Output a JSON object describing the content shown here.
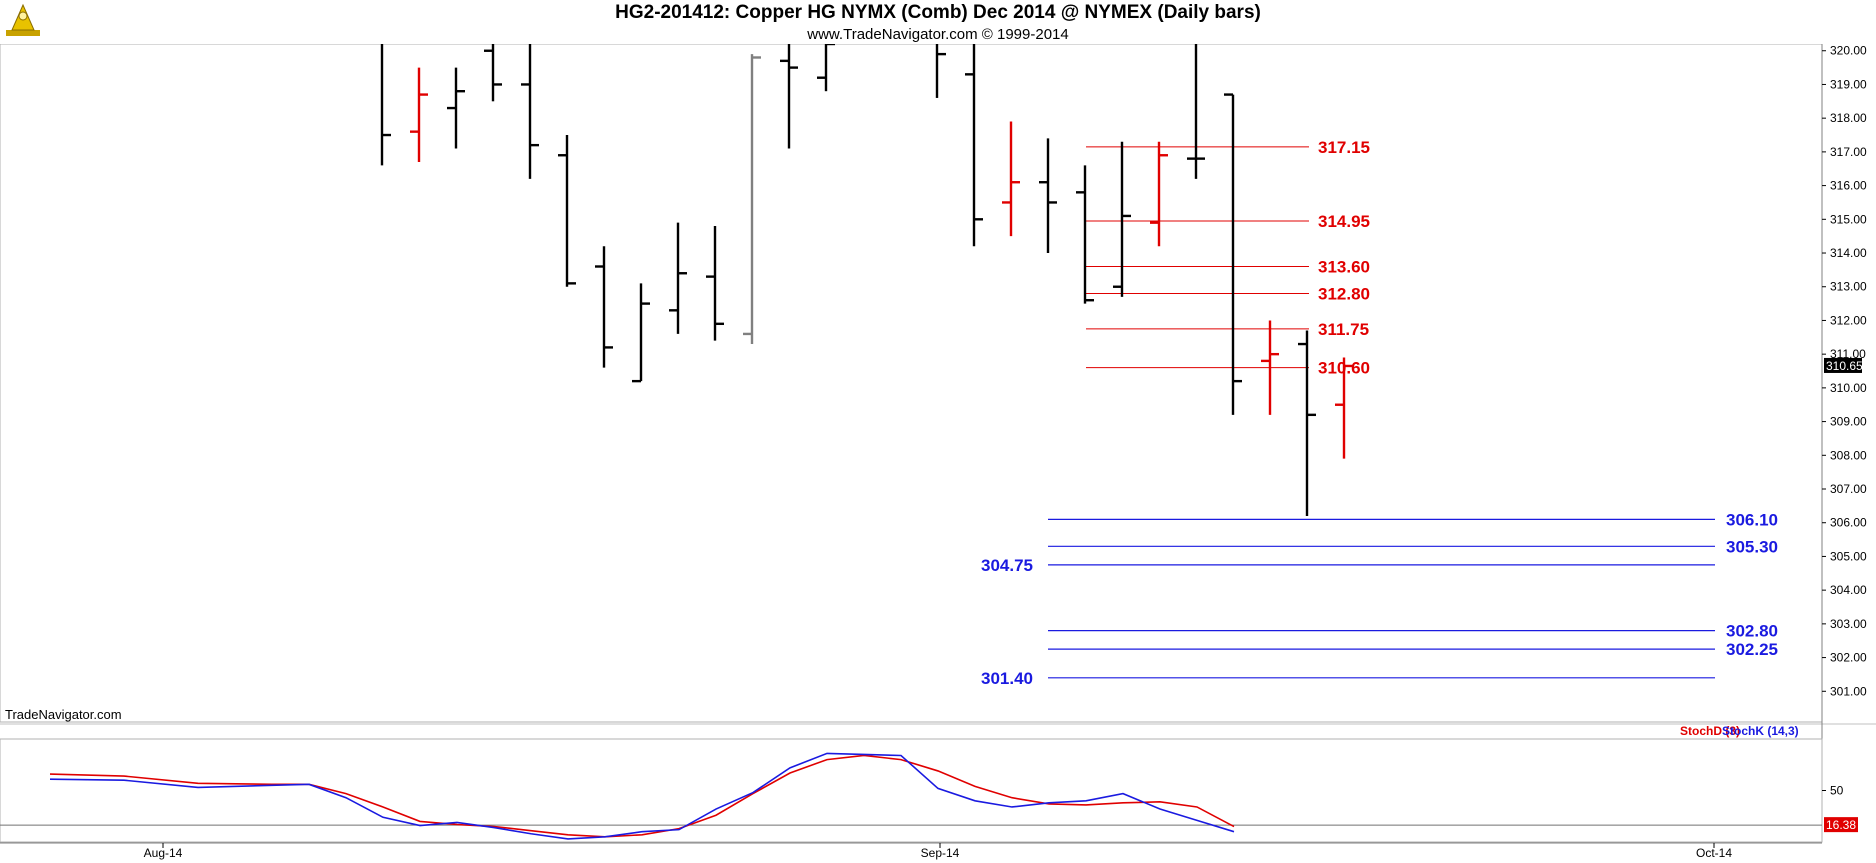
{
  "header": {
    "title": "HG2-201412:  Copper HG NYMX (Comb) Dec 2014 @ NYMEX  (Daily bars)",
    "subtitle": "www.TradeNavigator.com © 1999-2014",
    "logo_icon": "trade-navigator-logo-icon"
  },
  "watermark": "TradeNavigator.com",
  "colors": {
    "up_bar": "#000000",
    "down_bar": "#e00000",
    "neutral_bar": "#808080",
    "resistance": "#e00000",
    "support": "#1a1ae0",
    "stoch_d": "#e00000",
    "stoch_k": "#1a1ae0"
  },
  "chart_data": [
    {
      "type": "ohlc",
      "ylim": [
        300.0,
        320.2
      ],
      "yticks": [
        "320.00",
        "319.00",
        "318.00",
        "317.00",
        "316.00",
        "315.00",
        "314.00",
        "313.00",
        "312.00",
        "311.00",
        "310.00",
        "309.00",
        "308.00",
        "307.00",
        "306.00",
        "305.00",
        "304.00",
        "303.00",
        "302.00",
        "301.00"
      ],
      "last_price": "310.65",
      "x_labels": [
        {
          "label": "Aug-14",
          "index": 0
        },
        {
          "label": "Sep-14",
          "index": 20
        },
        {
          "label": "Oct-14",
          "index": 41
        }
      ],
      "bars": [
        {
          "i": 6,
          "o": null,
          "h": 320.2,
          "l": 316.6,
          "c": 317.5,
          "color": "black"
        },
        {
          "i": 7,
          "o": 317.6,
          "h": 319.5,
          "l": 316.7,
          "c": 318.7,
          "color": "red"
        },
        {
          "i": 8,
          "o": 318.3,
          "h": 319.5,
          "l": 317.1,
          "c": 318.8,
          "color": "black"
        },
        {
          "i": 9,
          "o": 320.0,
          "h": 320.2,
          "l": 318.5,
          "c": 319.0,
          "color": "black"
        },
        {
          "i": 10,
          "o": 319.0,
          "h": 320.2,
          "l": 316.2,
          "c": 317.2,
          "color": "black"
        },
        {
          "i": 11,
          "o": 316.9,
          "h": 317.5,
          "l": 313.0,
          "c": 313.1,
          "color": "black"
        },
        {
          "i": 12,
          "o": 313.6,
          "h": 314.2,
          "l": 310.6,
          "c": 311.2,
          "color": "black"
        },
        {
          "i": 13,
          "o": 310.2,
          "h": 313.1,
          "l": 310.2,
          "c": 312.5,
          "color": "black"
        },
        {
          "i": 14,
          "o": 312.3,
          "h": 314.9,
          "l": 311.6,
          "c": 313.4,
          "color": "black"
        },
        {
          "i": 15,
          "o": 313.3,
          "h": 314.8,
          "l": 311.4,
          "c": 311.9,
          "color": "black"
        },
        {
          "i": 16,
          "o": 311.6,
          "h": 319.9,
          "l": 311.3,
          "c": 319.8,
          "color": "gray"
        },
        {
          "i": 17,
          "o": 319.7,
          "h": 320.2,
          "l": 317.1,
          "c": 319.5,
          "color": "black"
        },
        {
          "i": 18,
          "o": 319.2,
          "h": 320.2,
          "l": 318.8,
          "c": 320.2,
          "color": "black"
        },
        {
          "i": 21,
          "o": null,
          "h": 320.2,
          "l": 318.6,
          "c": 319.9,
          "color": "black"
        },
        {
          "i": 22,
          "o": 319.3,
          "h": 320.2,
          "l": 314.2,
          "c": 315.0,
          "color": "black"
        },
        {
          "i": 23,
          "o": 315.5,
          "h": 317.9,
          "l": 314.5,
          "c": 316.1,
          "color": "red"
        },
        {
          "i": 24,
          "o": 316.1,
          "h": 317.4,
          "l": 314.0,
          "c": 315.5,
          "color": "black"
        },
        {
          "i": 25,
          "o": 315.8,
          "h": 316.6,
          "l": 312.5,
          "c": 312.6,
          "color": "black"
        },
        {
          "i": 26,
          "o": 313.0,
          "h": 317.3,
          "l": 312.7,
          "c": 315.1,
          "color": "black"
        },
        {
          "i": 27,
          "o": 314.9,
          "h": 317.3,
          "l": 314.2,
          "c": 316.9,
          "color": "red"
        },
        {
          "i": 28,
          "o": 316.8,
          "h": 320.2,
          "l": 316.2,
          "c": 316.8,
          "color": "black"
        },
        {
          "i": 29,
          "o": 318.7,
          "h": 318.7,
          "l": 309.2,
          "c": 310.2,
          "color": "black"
        },
        {
          "i": 30,
          "o": 310.8,
          "h": 312.0,
          "l": 309.2,
          "c": 311.0,
          "color": "red"
        },
        {
          "i": 31,
          "o": 311.3,
          "h": 311.7,
          "l": 306.2,
          "c": 309.2,
          "color": "black"
        },
        {
          "i": 32,
          "o": 309.5,
          "h": 310.9,
          "l": 307.9,
          "c": 310.65,
          "color": "red"
        }
      ],
      "resistance_levels": [
        {
          "value": 317.15,
          "label": "317.15"
        },
        {
          "value": 314.95,
          "label": "314.95"
        },
        {
          "value": 313.6,
          "label": "313.60"
        },
        {
          "value": 312.8,
          "label": "312.80"
        },
        {
          "value": 311.75,
          "label": "311.75"
        },
        {
          "value": 310.6,
          "label": "310.60"
        }
      ],
      "support_levels": [
        {
          "value": 306.1,
          "label": "306.10",
          "side": "right"
        },
        {
          "value": 305.3,
          "label": "305.30",
          "side": "right"
        },
        {
          "value": 304.75,
          "label": "304.75",
          "side": "left"
        },
        {
          "value": 302.8,
          "label": "302.80",
          "side": "right"
        },
        {
          "value": 302.25,
          "label": "302.25",
          "side": "right"
        },
        {
          "value": 301.4,
          "label": "301.40",
          "side": "left"
        }
      ]
    },
    {
      "type": "line",
      "ylim": [
        0,
        100
      ],
      "yticks": [
        "50"
      ],
      "reference_line": 16.38,
      "last_value_label": "16.38",
      "legend": [
        "StochD (3)",
        "StochK (14,3)"
      ],
      "x": [
        0,
        2,
        4,
        6,
        7,
        8,
        9,
        10,
        11,
        12,
        13,
        14,
        15,
        16,
        17,
        18,
        19,
        20,
        21,
        22,
        23,
        24,
        25,
        26,
        27,
        28,
        29,
        30,
        31,
        32
      ],
      "series": [
        {
          "name": "StochD (3)",
          "color": "red",
          "values": [
            66,
            64,
            57,
            56,
            56,
            47,
            34,
            20,
            17,
            15,
            11,
            7,
            5,
            7,
            13,
            26,
            47,
            67,
            80,
            84,
            80,
            69,
            54,
            43,
            37,
            36,
            38,
            39,
            34,
            15
          ]
        },
        {
          "name": "StochK (14,3)",
          "color": "blue",
          "values": [
            61,
            60,
            53,
            55,
            56,
            43,
            24,
            16,
            19,
            14,
            8,
            3,
            5,
            10,
            12,
            32,
            48,
            72,
            86,
            85,
            84,
            52,
            40,
            34,
            38,
            40,
            47,
            32,
            21,
            10
          ]
        }
      ]
    }
  ]
}
